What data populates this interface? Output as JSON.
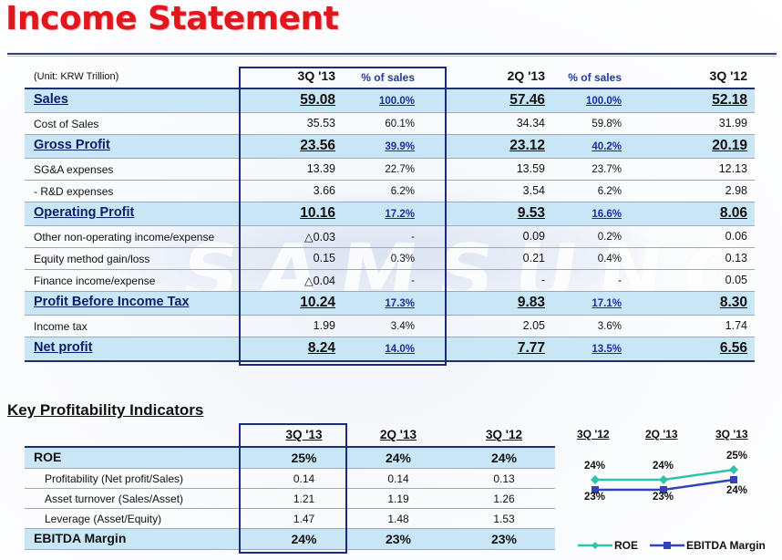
{
  "title": "Income Statement",
  "watermark": "SAMSUNG",
  "income": {
    "unit": "(Unit: KRW Trillion)",
    "headers": [
      "3Q '13",
      "% of sales",
      "2Q '13",
      "% of sales",
      "3Q '12"
    ],
    "rows": [
      {
        "label": "Sales",
        "v1": "59.08",
        "p1": "100.0%",
        "v2": "57.46",
        "p2": "100.0%",
        "v3": "52.18",
        "main": true
      },
      {
        "label": "Cost of Sales",
        "v1": "35.53",
        "p1": "60.1%",
        "v2": "34.34",
        "p2": "59.8%",
        "v3": "31.99",
        "main": false
      },
      {
        "label": "Gross Profit",
        "v1": "23.56",
        "p1": "39.9%",
        "v2": "23.12",
        "p2": "40.2%",
        "v3": "20.19",
        "main": true
      },
      {
        "label": "SG&A expenses",
        "v1": "13.39",
        "p1": "22.7%",
        "v2": "13.59",
        "p2": "23.7%",
        "v3": "12.13",
        "main": false
      },
      {
        "label": "- R&D expenses",
        "v1": "3.66",
        "p1": "6.2%",
        "v2": "3.54",
        "p2": "6.2%",
        "v3": "2.98",
        "main": false
      },
      {
        "label": "Operating Profit",
        "v1": "10.16",
        "p1": "17.2%",
        "v2": "9.53",
        "p2": "16.6%",
        "v3": "8.06",
        "main": true
      },
      {
        "label": "Other non-operating income/expense",
        "v1": "△0.03",
        "p1": "-",
        "v2": "0.09",
        "p2": "0.2%",
        "v3": "0.06",
        "main": false
      },
      {
        "label": "Equity method gain/loss",
        "v1": "0.15",
        "p1": "0.3%",
        "v2": "0.21",
        "p2": "0.4%",
        "v3": "0.13",
        "main": false
      },
      {
        "label": "Finance income/expense",
        "v1": "△0.04",
        "p1": "-",
        "v2": "-",
        "p2": "-",
        "v3": "0.05",
        "main": false
      },
      {
        "label": "Profit Before Income Tax",
        "v1": "10.24",
        "p1": "17.3%",
        "v2": "9.83",
        "p2": "17.1%",
        "v3": "8.30",
        "main": true
      },
      {
        "label": "Income tax",
        "v1": "1.99",
        "p1": "3.4%",
        "v2": "2.05",
        "p2": "3.6%",
        "v3": "1.74",
        "main": false
      },
      {
        "label": "Net profit",
        "v1": "8.24",
        "p1": "14.0%",
        "v2": "7.77",
        "p2": "13.5%",
        "v3": "6.56",
        "main": true
      }
    ]
  },
  "kpi": {
    "title": "Key Profitability Indicators",
    "headers": [
      "3Q '13",
      "2Q '13",
      "3Q '12"
    ],
    "rows": [
      {
        "label": "ROE",
        "v1": "25%",
        "v2": "24%",
        "v3": "24%",
        "main": true
      },
      {
        "label": "Profitability (Net profit/Sales)",
        "v1": "0.14",
        "v2": "0.14",
        "v3": "0.13",
        "main": false
      },
      {
        "label": "Asset turnover (Sales/Asset)",
        "v1": "1.21",
        "v2": "1.19",
        "v3": "1.26",
        "main": false
      },
      {
        "label": "Leverage (Asset/Equity)",
        "v1": "1.47",
        "v2": "1.48",
        "v3": "1.53",
        "main": false
      },
      {
        "label": "EBITDA Margin",
        "v1": "24%",
        "v2": "23%",
        "v3": "23%",
        "main": true
      }
    ]
  },
  "chart_data": {
    "type": "line",
    "categories": [
      "3Q '12",
      "2Q '13",
      "3Q '13"
    ],
    "series": [
      {
        "name": "ROE",
        "values": [
          24,
          24,
          25
        ],
        "labels": [
          "24%",
          "24%",
          "25%"
        ],
        "color": "#2ec4a8"
      },
      {
        "name": "EBITDA Margin",
        "values": [
          23,
          23,
          24
        ],
        "labels": [
          "23%",
          "23%",
          "24%"
        ],
        "color": "#3342b8"
      }
    ],
    "legend": "bottom"
  }
}
